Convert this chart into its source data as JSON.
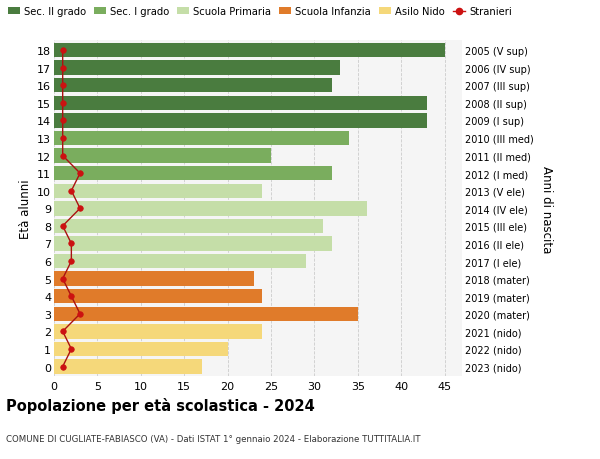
{
  "ages": [
    18,
    17,
    16,
    15,
    14,
    13,
    12,
    11,
    10,
    9,
    8,
    7,
    6,
    5,
    4,
    3,
    2,
    1,
    0
  ],
  "right_labels": [
    "2005 (V sup)",
    "2006 (IV sup)",
    "2007 (III sup)",
    "2008 (II sup)",
    "2009 (I sup)",
    "2010 (III med)",
    "2011 (II med)",
    "2012 (I med)",
    "2013 (V ele)",
    "2014 (IV ele)",
    "2015 (III ele)",
    "2016 (II ele)",
    "2017 (I ele)",
    "2018 (mater)",
    "2019 (mater)",
    "2020 (mater)",
    "2021 (nido)",
    "2022 (nido)",
    "2023 (nido)"
  ],
  "bar_values": [
    45,
    33,
    32,
    43,
    43,
    34,
    25,
    32,
    24,
    36,
    31,
    32,
    29,
    23,
    24,
    35,
    24,
    20,
    17
  ],
  "bar_colors": [
    "#4a7c3f",
    "#4a7c3f",
    "#4a7c3f",
    "#4a7c3f",
    "#4a7c3f",
    "#7aad5e",
    "#7aad5e",
    "#7aad5e",
    "#c5dea8",
    "#c5dea8",
    "#c5dea8",
    "#c5dea8",
    "#c5dea8",
    "#e07b2a",
    "#e07b2a",
    "#e07b2a",
    "#f5d87a",
    "#f5d87a",
    "#f5d87a"
  ],
  "stranieri_values": [
    1,
    1,
    1,
    1,
    1,
    1,
    1,
    3,
    2,
    3,
    1,
    2,
    2,
    1,
    2,
    3,
    1,
    2,
    1
  ],
  "legend_labels": [
    "Sec. II grado",
    "Sec. I grado",
    "Scuola Primaria",
    "Scuola Infanzia",
    "Asilo Nido",
    "Stranieri"
  ],
  "legend_colors": [
    "#4a7c3f",
    "#7aad5e",
    "#c5dea8",
    "#e07b2a",
    "#f5d87a",
    "#cc1111"
  ],
  "ylabel_left": "Età alunni",
  "ylabel_right": "Anni di nascita",
  "title": "Popolazione per età scolastica - 2024",
  "subtitle": "COMUNE DI CUGLIATE-FABIASCO (VA) - Dati ISTAT 1° gennaio 2024 - Elaborazione TUTTITALIA.IT",
  "xlim": [
    0,
    47
  ],
  "xticks": [
    0,
    5,
    10,
    15,
    20,
    25,
    30,
    35,
    40,
    45
  ],
  "background_color": "#f5f5f5",
  "fig_background": "#ffffff"
}
